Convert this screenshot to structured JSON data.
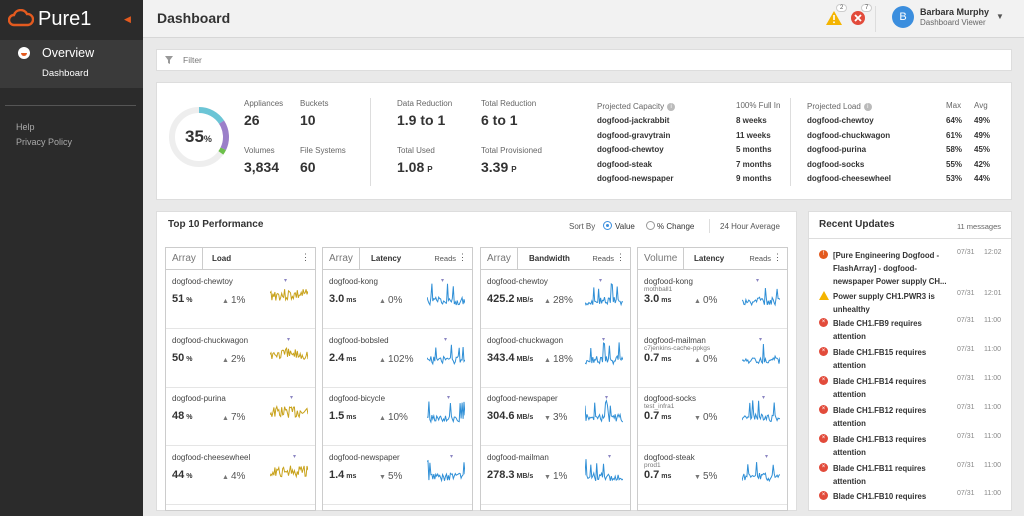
{
  "sidebar": {
    "brand": "Pure1",
    "overview_label": "Overview",
    "dashboard_label": "Dashboard",
    "help_label": "Help",
    "privacy_label": "Privacy Policy"
  },
  "header": {
    "title": "Dashboard",
    "warning_count": "2",
    "error_count": "7",
    "user_initial": "B",
    "user_name": "Barbara Murphy",
    "user_role": "Dashboard Viewer"
  },
  "filter": {
    "placeholder": "Filter"
  },
  "summary": {
    "capacity_percent": "35",
    "capacity_unit": "%",
    "appliances_label": "Appliances",
    "appliances": "26",
    "buckets_label": "Buckets",
    "buckets": "10",
    "volumes_label": "Volumes",
    "volumes": "3,834",
    "filesystems_label": "File Systems",
    "filesystems": "60",
    "data_reduction_label": "Data Reduction",
    "data_reduction": "1.9 to 1",
    "total_reduction_label": "Total Reduction",
    "total_reduction": "6 to 1",
    "total_used_label": "Total Used",
    "total_used": "1.08",
    "total_used_unit": "P",
    "total_prov_label": "Total Provisioned",
    "total_prov": "3.39",
    "total_prov_unit": "P",
    "projected_capacity_label": "Projected Capacity",
    "full_in_label": "100% Full In",
    "projected_capacity": [
      {
        "name": "dogfood-jackrabbit",
        "value": "8 weeks"
      },
      {
        "name": "dogfood-gravytrain",
        "value": "11 weeks"
      },
      {
        "name": "dogfood-chewtoy",
        "value": "5 months"
      },
      {
        "name": "dogfood-steak",
        "value": "7 months"
      },
      {
        "name": "dogfood-newspaper",
        "value": "9 months"
      }
    ],
    "projected_load_label": "Projected Load",
    "max_label": "Max",
    "avg_label": "Avg",
    "projected_load": [
      {
        "name": "dogfood-chewtoy",
        "max": "64%",
        "avg": "49%"
      },
      {
        "name": "dogfood-chuckwagon",
        "max": "61%",
        "avg": "49%"
      },
      {
        "name": "dogfood-purina",
        "max": "58%",
        "avg": "45%"
      },
      {
        "name": "dogfood-socks",
        "max": "55%",
        "avg": "42%"
      },
      {
        "name": "dogfood-cheesewheel",
        "max": "53%",
        "avg": "44%"
      }
    ]
  },
  "performance": {
    "title": "Top 10 Performance",
    "sort_by": "Sort By",
    "sort_value": "Value",
    "sort_change": "% Change",
    "range": "24 Hour Average",
    "columns": [
      {
        "kind": "Array",
        "metric": "Load",
        "sub": "",
        "color": "#c8a21b",
        "items": [
          {
            "name": "dogfood-chewtoy",
            "sub": "",
            "value": "51",
            "unit": "%",
            "dir": "▲",
            "change": "1%"
          },
          {
            "name": "dogfood-chuckwagon",
            "sub": "",
            "value": "50",
            "unit": "%",
            "dir": "▲",
            "change": "2%"
          },
          {
            "name": "dogfood-purina",
            "sub": "",
            "value": "48",
            "unit": "%",
            "dir": "▲",
            "change": "7%"
          },
          {
            "name": "dogfood-cheesewheel",
            "sub": "",
            "value": "44",
            "unit": "%",
            "dir": "▲",
            "change": "4%"
          }
        ]
      },
      {
        "kind": "Array",
        "metric": "Latency",
        "sub": "Reads",
        "color": "#2f8fd6",
        "items": [
          {
            "name": "dogfood-kong",
            "sub": "",
            "value": "3.0",
            "unit": "ms",
            "dir": "▲",
            "change": "0%"
          },
          {
            "name": "dogfood-bobsled",
            "sub": "",
            "value": "2.4",
            "unit": "ms",
            "dir": "▲",
            "change": "102%"
          },
          {
            "name": "dogfood-bicycle",
            "sub": "",
            "value": "1.5",
            "unit": "ms",
            "dir": "▲",
            "change": "10%"
          },
          {
            "name": "dogfood-newspaper",
            "sub": "",
            "value": "1.4",
            "unit": "ms",
            "dir": "▼",
            "change": "5%"
          }
        ]
      },
      {
        "kind": "Array",
        "metric": "Bandwidth",
        "sub": "Reads",
        "color": "#2f8fd6",
        "items": [
          {
            "name": "dogfood-chewtoy",
            "sub": "",
            "value": "425.2",
            "unit": "MB/s",
            "dir": "▲",
            "change": "28%"
          },
          {
            "name": "dogfood-chuckwagon",
            "sub": "",
            "value": "343.4",
            "unit": "MB/s",
            "dir": "▲",
            "change": "18%"
          },
          {
            "name": "dogfood-newspaper",
            "sub": "",
            "value": "304.6",
            "unit": "MB/s",
            "dir": "▼",
            "change": "3%"
          },
          {
            "name": "dogfood-mailman",
            "sub": "",
            "value": "278.3",
            "unit": "MB/s",
            "dir": "▼",
            "change": "1%"
          }
        ]
      },
      {
        "kind": "Volume",
        "metric": "Latency",
        "sub": "Reads",
        "color": "#2f8fd6",
        "items": [
          {
            "name": "dogfood-kong",
            "sub": "mothball1",
            "value": "3.0",
            "unit": "ms",
            "dir": "▲",
            "change": "0%"
          },
          {
            "name": "dogfood-mailman",
            "sub": "c7jenkins-cache-ppkgs",
            "value": "0.7",
            "unit": "ms",
            "dir": "▲",
            "change": "0%"
          },
          {
            "name": "dogfood-socks",
            "sub": "test_infra1",
            "value": "0.7",
            "unit": "ms",
            "dir": "▼",
            "change": "0%"
          },
          {
            "name": "dogfood-steak",
            "sub": "prod1",
            "value": "0.7",
            "unit": "ms",
            "dir": "▼",
            "change": "5%"
          }
        ]
      }
    ]
  },
  "updates": {
    "title": "Recent Updates",
    "count": "11 messages",
    "items": [
      {
        "type": "crit",
        "text": "[Pure Engineering Dogfood - FlashArray] - dogfood-newspaper Power supply CH...",
        "date": "07/31",
        "time": "12:02"
      },
      {
        "type": "warn",
        "text": "Power supply CH1.PWR3 is unhealthy",
        "date": "07/31",
        "time": "12:01"
      },
      {
        "type": "err",
        "text": "Blade CH1.FB9 requires attention",
        "date": "07/31",
        "time": "11:00"
      },
      {
        "type": "err",
        "text": "Blade CH1.FB15 requires attention",
        "date": "07/31",
        "time": "11:00"
      },
      {
        "type": "err",
        "text": "Blade CH1.FB14 requires attention",
        "date": "07/31",
        "time": "11:00"
      },
      {
        "type": "err",
        "text": "Blade CH1.FB12 requires attention",
        "date": "07/31",
        "time": "11:00"
      },
      {
        "type": "err",
        "text": "Blade CH1.FB13 requires attention",
        "date": "07/31",
        "time": "11:00"
      },
      {
        "type": "err",
        "text": "Blade CH1.FB11 requires attention",
        "date": "07/31",
        "time": "11:00"
      },
      {
        "type": "err",
        "text": "Blade CH1.FB10 requires",
        "date": "07/31",
        "time": "11:00"
      }
    ]
  }
}
